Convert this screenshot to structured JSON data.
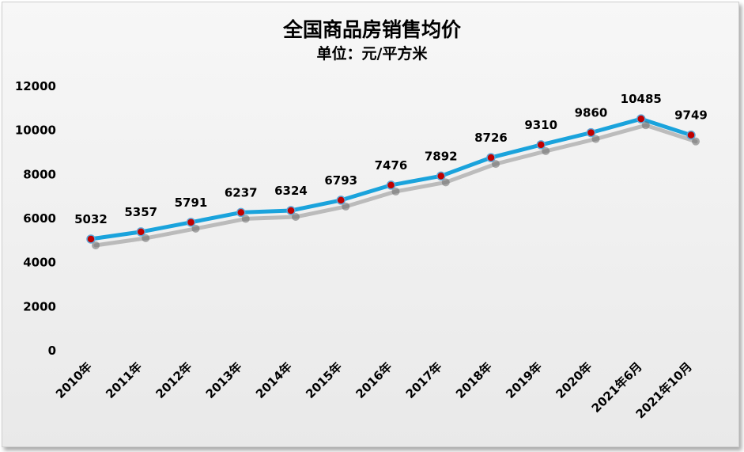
{
  "chart_data": {
    "type": "line",
    "title": "全国商品房销售均价",
    "subtitle": "单位：元/平方米",
    "categories": [
      "2010年",
      "2011年",
      "2012年",
      "2013年",
      "2014年",
      "2015年",
      "2016年",
      "2017年",
      "2018年",
      "2019年",
      "2020年",
      "2021年6月",
      "2021年10月"
    ],
    "values": [
      5032,
      5357,
      5791,
      6237,
      6324,
      6793,
      7476,
      7892,
      8726,
      9310,
      9860,
      10485,
      9749
    ],
    "ylim": [
      0,
      12000
    ],
    "yticks": [
      0,
      2000,
      4000,
      6000,
      8000,
      10000,
      12000
    ],
    "xlabel": "",
    "ylabel": "",
    "grid": false,
    "line_color": "#1aa3dc",
    "marker_color": "#c00000"
  }
}
